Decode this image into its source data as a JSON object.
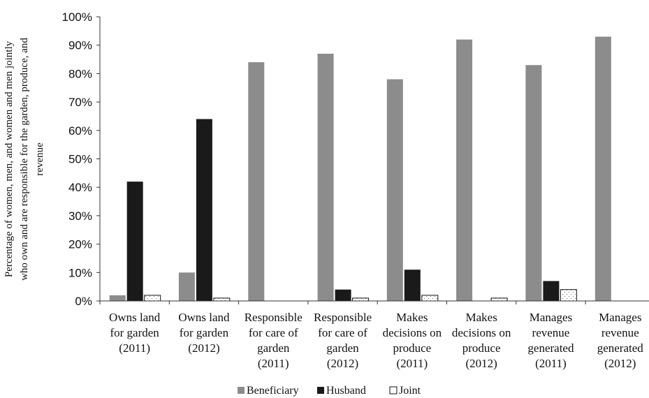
{
  "chart_data": {
    "type": "bar",
    "ylabel_lines": [
      "Percentage of women, men, and women and men jointly",
      "who own and are responsible for the garden, produce, and",
      "revenue"
    ],
    "ylim": [
      0,
      100
    ],
    "yticks": [
      0,
      10,
      20,
      30,
      40,
      50,
      60,
      70,
      80,
      90,
      100
    ],
    "ytick_labels": [
      "0%",
      "10%",
      "20%",
      "30%",
      "40%",
      "50%",
      "60%",
      "70%",
      "80%",
      "90%",
      "100%"
    ],
    "categories": [
      [
        "Owns land",
        "for garden",
        "(2011)"
      ],
      [
        "Owns land",
        "for garden",
        "(2012)"
      ],
      [
        "Responsible",
        "for care of",
        "garden",
        "(2011)"
      ],
      [
        "Responsible",
        "for care of",
        "garden",
        "(2012)"
      ],
      [
        "Makes",
        "decisions on",
        "produce",
        "(2011)"
      ],
      [
        "Makes",
        "decisions on",
        "produce",
        "(2012)"
      ],
      [
        "Manages",
        "revenue",
        "generated",
        "(2011)"
      ],
      [
        "Manages",
        "revenue",
        "generated",
        "(2012)"
      ]
    ],
    "series": [
      {
        "name": "Beneficiary",
        "color": "#8c8c8c",
        "pattern": "solid",
        "values": [
          2,
          10,
          84,
          87,
          78,
          92,
          83,
          93
        ]
      },
      {
        "name": "Husband",
        "color": "#1a1a1a",
        "pattern": "solid",
        "values": [
          42,
          64,
          0,
          4,
          11,
          0,
          7,
          0
        ]
      },
      {
        "name": "Joint",
        "color": "#ffffff",
        "pattern": "dotted",
        "values": [
          2,
          1,
          0,
          1,
          2,
          1,
          4,
          0
        ]
      }
    ],
    "grid": false,
    "legend_position": "bottom"
  }
}
